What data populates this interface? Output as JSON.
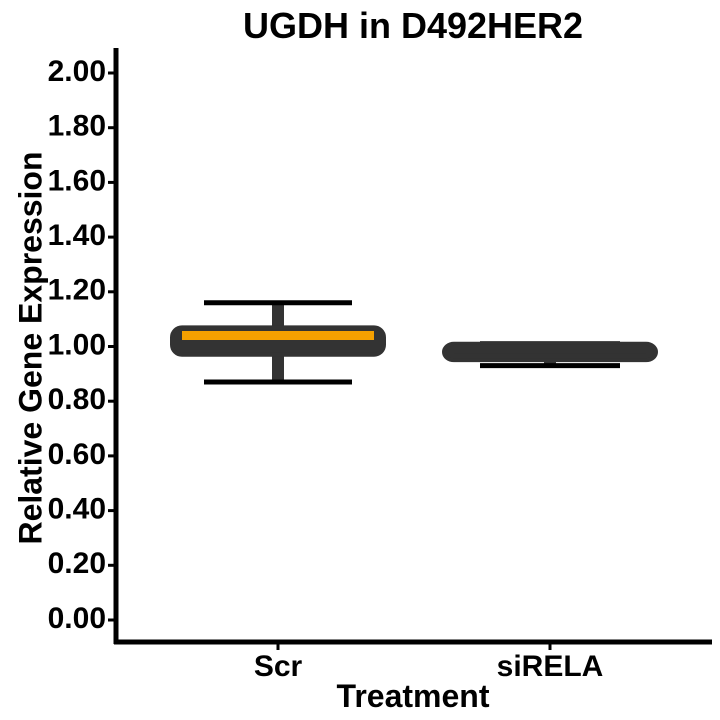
{
  "chart_data": {
    "type": "box",
    "title": "UGDH in D492HER2",
    "xlabel": "Treatment",
    "ylabel": "Relative Gene Expression",
    "ylim": [
      -0.1,
      2.1
    ],
    "yticks": [
      0.0,
      0.2,
      0.4,
      0.6,
      0.8,
      1.0,
      1.2,
      1.4,
      1.6,
      1.8,
      2.0
    ],
    "ytick_labels": [
      "0.00",
      "0.20",
      "0.40",
      "0.60",
      "0.80",
      "1.00",
      "1.20",
      "1.40",
      "1.60",
      "1.80",
      "2.00"
    ],
    "categories": [
      "Scr",
      "siRELA"
    ],
    "boxes": [
      {
        "category": "Scr",
        "min": 0.87,
        "q1": 0.97,
        "median": 1.04,
        "q3": 1.07,
        "max": 1.16,
        "median_color": "#F5A000"
      },
      {
        "category": "siRELA",
        "min": 0.93,
        "q1": 0.95,
        "median": 0.99,
        "q3": 1.01,
        "max": 1.01,
        "median_color": "#333333"
      }
    ],
    "box_color": "#333333",
    "whisker_color": "#000000",
    "grid": false,
    "legend": "none"
  }
}
